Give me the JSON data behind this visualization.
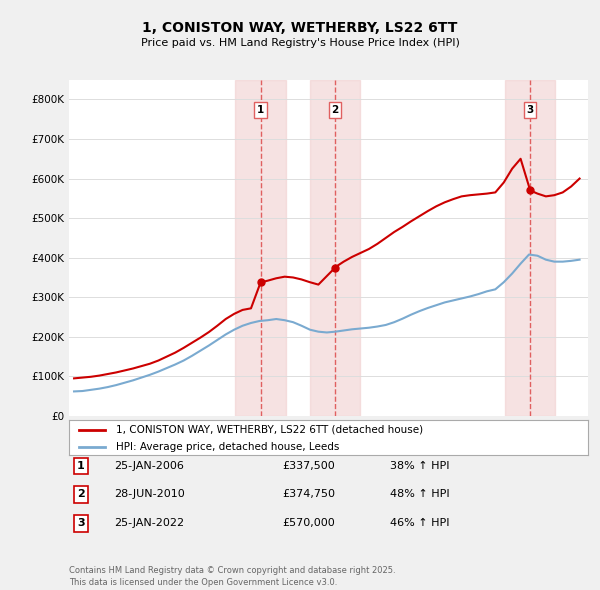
{
  "title": "1, CONISTON WAY, WETHERBY, LS22 6TT",
  "subtitle": "Price paid vs. HM Land Registry's House Price Index (HPI)",
  "ylabel_ticks": [
    "£0",
    "£100K",
    "£200K",
    "£300K",
    "£400K",
    "£500K",
    "£600K",
    "£700K",
    "£800K"
  ],
  "ytick_values": [
    0,
    100000,
    200000,
    300000,
    400000,
    500000,
    600000,
    700000,
    800000
  ],
  "ylim": [
    0,
    850000
  ],
  "xlim_start": 1994.7,
  "xlim_end": 2025.5,
  "sale_dates": [
    2006.07,
    2010.49,
    2022.07
  ],
  "sale_prices": [
    337500,
    374750,
    570000
  ],
  "sale_labels": [
    "1",
    "2",
    "3"
  ],
  "sale_date_strs": [
    "25-JAN-2006",
    "28-JUN-2010",
    "25-JAN-2022"
  ],
  "sale_price_strs": [
    "£337,500",
    "£374,750",
    "£570,000"
  ],
  "sale_hpi_strs": [
    "38% ↑ HPI",
    "48% ↑ HPI",
    "46% ↑ HPI"
  ],
  "vline_color": "#e06060",
  "vline_bg_color": "#f0d0d0",
  "property_line_color": "#cc0000",
  "hpi_line_color": "#7aaad0",
  "background_color": "#f0f0f0",
  "plot_bg_color": "#ffffff",
  "legend_label_property": "1, CONISTON WAY, WETHERBY, LS22 6TT (detached house)",
  "legend_label_hpi": "HPI: Average price, detached house, Leeds",
  "footer": "Contains HM Land Registry data © Crown copyright and database right 2025.\nThis data is licensed under the Open Government Licence v3.0.",
  "hpi_years": [
    1995,
    1995.5,
    1996,
    1996.5,
    1997,
    1997.5,
    1998,
    1998.5,
    1999,
    1999.5,
    2000,
    2000.5,
    2001,
    2001.5,
    2002,
    2002.5,
    2003,
    2003.5,
    2004,
    2004.5,
    2005,
    2005.5,
    2006,
    2006.5,
    2007,
    2007.5,
    2008,
    2008.5,
    2009,
    2009.5,
    2010,
    2010.5,
    2011,
    2011.5,
    2012,
    2012.5,
    2013,
    2013.5,
    2014,
    2014.5,
    2015,
    2015.5,
    2016,
    2016.5,
    2017,
    2017.5,
    2018,
    2018.5,
    2019,
    2019.5,
    2020,
    2020.5,
    2021,
    2021.5,
    2022,
    2022.5,
    2023,
    2023.5,
    2024,
    2024.5,
    2025
  ],
  "hpi_values": [
    62000,
    63000,
    66000,
    69000,
    73000,
    78000,
    84000,
    90000,
    97000,
    104000,
    112000,
    121000,
    130000,
    140000,
    152000,
    165000,
    178000,
    192000,
    206000,
    218000,
    228000,
    235000,
    240000,
    242000,
    245000,
    242000,
    237000,
    228000,
    218000,
    213000,
    211000,
    213000,
    216000,
    219000,
    221000,
    223000,
    226000,
    230000,
    237000,
    246000,
    256000,
    265000,
    273000,
    280000,
    287000,
    292000,
    297000,
    302000,
    308000,
    315000,
    320000,
    338000,
    360000,
    385000,
    408000,
    405000,
    395000,
    390000,
    390000,
    392000,
    395000
  ],
  "property_years": [
    1995,
    1995.5,
    1996,
    1996.5,
    1997,
    1997.5,
    1998,
    1998.5,
    1999,
    1999.5,
    2000,
    2000.5,
    2001,
    2001.5,
    2002,
    2002.5,
    2003,
    2003.5,
    2004,
    2004.5,
    2005,
    2005.5,
    2006.07,
    2006.5,
    2007,
    2007.5,
    2008,
    2008.5,
    2009,
    2009.5,
    2010.49,
    2010.5,
    2011,
    2011.5,
    2012,
    2012.5,
    2013,
    2013.5,
    2014,
    2014.5,
    2015,
    2015.5,
    2016,
    2016.5,
    2017,
    2017.5,
    2018,
    2018.5,
    2019,
    2019.5,
    2020,
    2020.5,
    2021,
    2021.5,
    2022.07,
    2022.5,
    2023,
    2023.5,
    2024,
    2024.5,
    2025
  ],
  "property_values": [
    95000,
    97000,
    99000,
    102000,
    106000,
    110000,
    115000,
    120000,
    126000,
    132000,
    140000,
    150000,
    160000,
    172000,
    185000,
    198000,
    212000,
    228000,
    245000,
    258000,
    268000,
    272000,
    337500,
    342000,
    348000,
    352000,
    350000,
    345000,
    338000,
    332000,
    374750,
    376000,
    390000,
    402000,
    412000,
    422000,
    435000,
    450000,
    465000,
    478000,
    492000,
    505000,
    518000,
    530000,
    540000,
    548000,
    555000,
    558000,
    560000,
    562000,
    565000,
    590000,
    625000,
    650000,
    570000,
    562000,
    555000,
    558000,
    565000,
    580000,
    600000
  ]
}
